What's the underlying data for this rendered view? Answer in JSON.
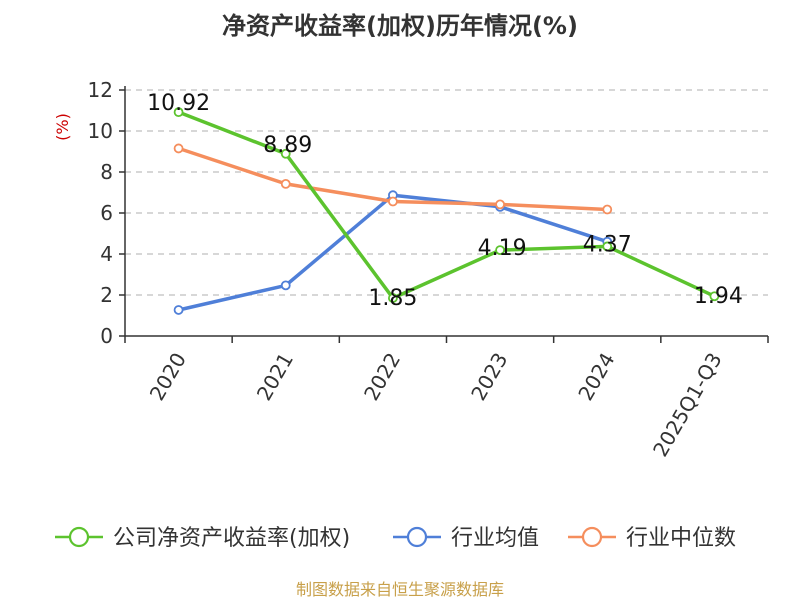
{
  "chart_data": {
    "type": "line",
    "title": "净资产收益率(加权)历年情况(%)",
    "ylabel": "(%)",
    "categories": [
      "2020",
      "2021",
      "2022",
      "2023",
      "2024",
      "2025Q1-Q3"
    ],
    "ylim": [
      0,
      12
    ],
    "yticks": [
      0,
      2,
      4,
      6,
      8,
      10,
      12
    ],
    "grid": true,
    "legend_position": "bottom",
    "series": [
      {
        "name": "公司净资产收益率(加权)",
        "color": "#5cc32e",
        "values": [
          10.92,
          8.89,
          1.85,
          4.19,
          4.37,
          1.94
        ],
        "labels": [
          "10.92",
          "8.89",
          "1.85",
          "4.19",
          "4.37",
          "1.94"
        ]
      },
      {
        "name": "行业均值",
        "color": "#4f7fd8",
        "values": [
          1.27,
          2.47,
          6.87,
          6.3,
          4.6,
          null
        ]
      },
      {
        "name": "行业中位数",
        "color": "#f58e5d",
        "values": [
          9.15,
          7.42,
          6.56,
          6.42,
          6.17,
          null
        ]
      }
    ]
  },
  "source_text": "制图数据来自恒生聚源数据库"
}
